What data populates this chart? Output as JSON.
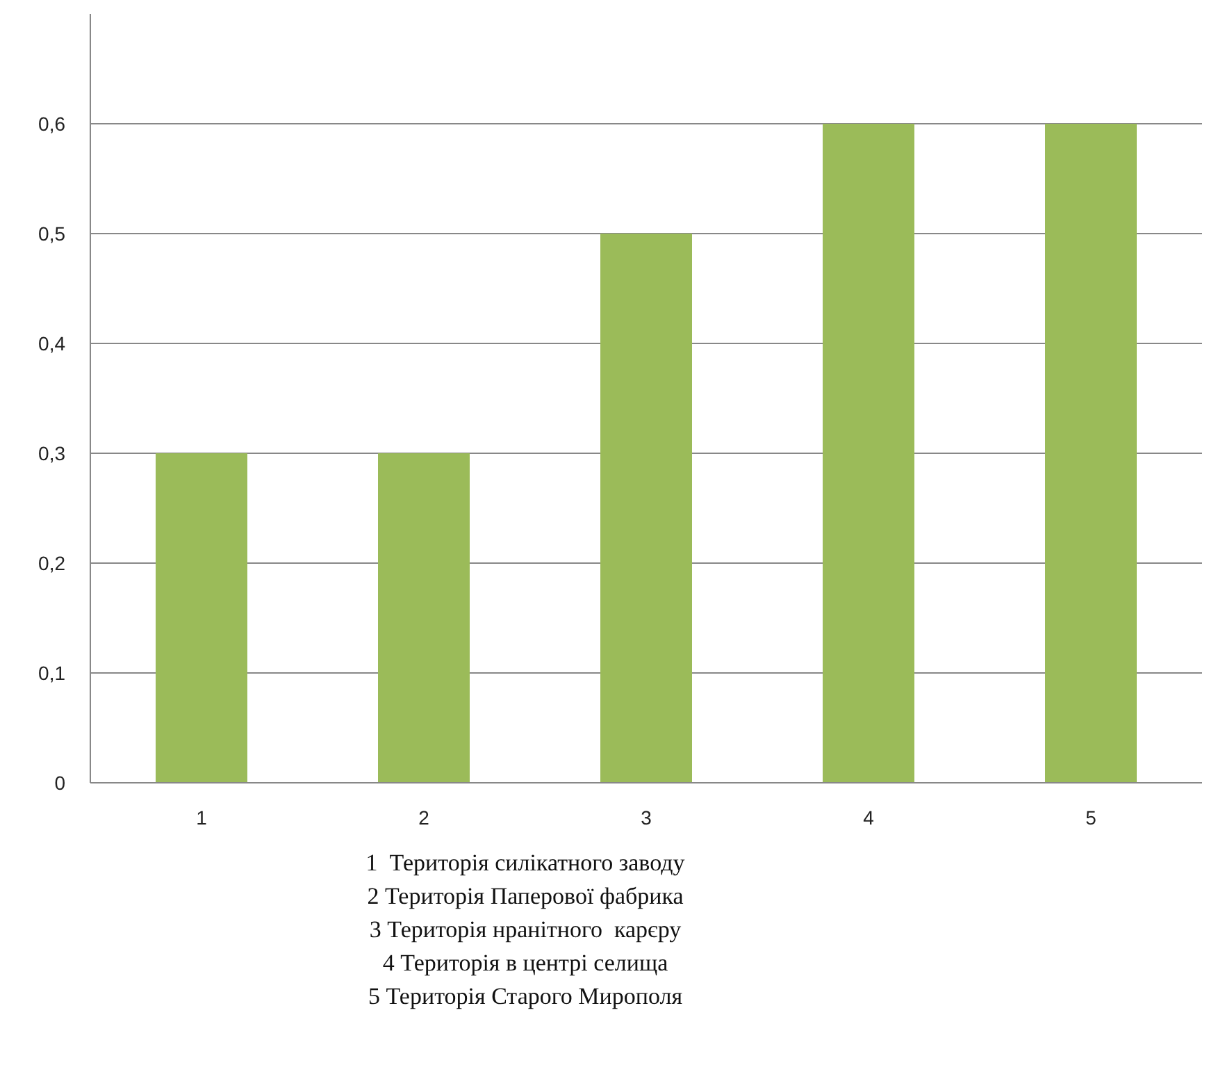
{
  "chart_data": {
    "type": "bar",
    "categories": [
      "1",
      "2",
      "3",
      "4",
      "5"
    ],
    "values": [
      0.3,
      0.3,
      0.5,
      0.6,
      0.6
    ],
    "color": "#9bbb59",
    "ylim": [
      0,
      0.7
    ],
    "yticks": [
      0,
      {
        "value": 0.1,
        "label": "0,1"
      },
      {
        "value": 0.2,
        "label": "0,2"
      },
      {
        "value": 0.3,
        "label": "0,3"
      },
      {
        "value": 0.4,
        "label": "0,4"
      },
      {
        "value": 0.5,
        "label": "0,5"
      },
      {
        "value": 0.6,
        "label": "0,6"
      }
    ],
    "grid": "y",
    "annotations": [
      "1  Територія силікатного заводу",
      "2 Територія Паперової фабрика",
      "3 Територія нранітного  карєру",
      "4 Територія в центрі селища",
      "5 Територія Старого Мирополя"
    ]
  }
}
